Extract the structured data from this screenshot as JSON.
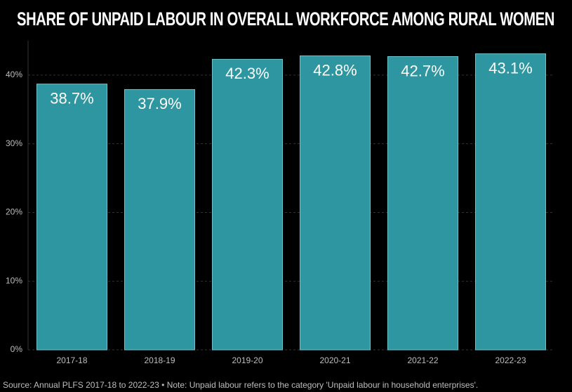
{
  "chart_data": {
    "type": "bar",
    "title": "SHARE OF UNPAID LABOUR IN OVERALL WORKFORCE AMONG RURAL WOMEN",
    "categories": [
      "2017-18",
      "2018-19",
      "2019-20",
      "2020-21",
      "2021-22",
      "2022-23"
    ],
    "values": [
      38.7,
      37.9,
      42.3,
      42.8,
      42.7,
      43.1
    ],
    "value_labels": [
      "38.7%",
      "37.9%",
      "42.3%",
      "42.8%",
      "42.7%",
      "43.1%"
    ],
    "color": "#2e96a0",
    "ylim": [
      0,
      45
    ],
    "yticks": [
      {
        "value": 0,
        "label": "0%"
      },
      {
        "value": 10,
        "label": "10%"
      },
      {
        "value": 20,
        "label": "20%"
      },
      {
        "value": 30,
        "label": "30%"
      },
      {
        "value": 40,
        "label": "40%"
      }
    ],
    "grid": true,
    "source": "Source: Annual PLFS 2017-18 to 2022-23 • Note: Unpaid labour refers to the category 'Unpaid labour in household enterprises'."
  }
}
